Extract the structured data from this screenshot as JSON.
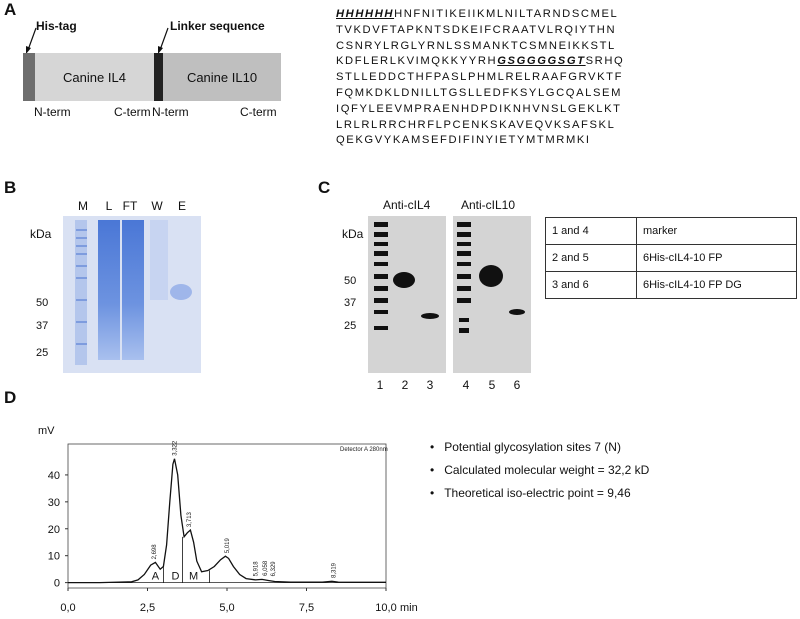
{
  "panels": {
    "a": "A",
    "b": "B",
    "c": "C",
    "d": "D"
  },
  "panelA": {
    "his_tag": "His-tag",
    "linker": "Linker sequence",
    "il4": "Canine IL4",
    "il10": "Canine IL10",
    "nterm": "N-term",
    "cterm": "C-term",
    "colors": {
      "his": "#6e6e6e",
      "il4": "#d6d6d6",
      "linker": "#222222",
      "il10": "#bfbfbf"
    }
  },
  "sequence": [
    {
      "parts": [
        {
          "t": "HHHHHH",
          "style": "tag"
        },
        {
          "t": "HNFNITIKEIIKMLNILTARNDSCMEL"
        }
      ]
    },
    {
      "parts": [
        {
          "t": "TVKDVFTAPKNTSDKEIFCRAATVLRQIYTHN"
        }
      ]
    },
    {
      "parts": [
        {
          "t": "CSNRYLRGLYRNLSSMANKTCSMNEIKKSTL"
        }
      ]
    },
    {
      "parts": [
        {
          "t": "KDFLERLKVIMQKKYYRH"
        },
        {
          "t": "GSGGGGSGT",
          "style": "tag"
        },
        {
          "t": "SRHQ"
        }
      ]
    },
    {
      "parts": [
        {
          "t": "STLLEDDCTHFPASLPHMLRELRAAFGRVKTF"
        }
      ]
    },
    {
      "parts": [
        {
          "t": "FQMKDKLDNILLTGSLLEDFKSYLGCQALSEM"
        }
      ]
    },
    {
      "parts": [
        {
          "t": "IQFYLEEVMPRAENHDPDIKNHVNSLGEKLKT"
        }
      ]
    },
    {
      "parts": [
        {
          "t": "LRLRLRRCHRFLPCENKSKAVEQVKSAFSKL"
        }
      ]
    },
    {
      "parts": [
        {
          "t": "QEKGVYKAMSEFDIFINYIETYMTMRMKI"
        }
      ]
    }
  ],
  "panelB": {
    "lanes": [
      "M",
      "L",
      "FT",
      "W",
      "E"
    ],
    "kda": "kDa",
    "markers": [
      "50",
      "37",
      "25"
    ]
  },
  "panelC": {
    "anti1": "Anti-cIL4",
    "anti2": "Anti-cIL10",
    "kda": "kDa",
    "markers": [
      "50",
      "37",
      "25"
    ],
    "lanes": [
      "1",
      "2",
      "3",
      "4",
      "5",
      "6"
    ],
    "legend": [
      {
        "lanes": "1 and 4",
        "desc": "marker"
      },
      {
        "lanes": "2 and 5",
        "desc": "6His-cIL4-10  FP"
      },
      {
        "lanes": "3 and 6",
        "desc": "6His-cIL4-10  FP DG"
      }
    ]
  },
  "panelD": {
    "bullets": [
      "Potential glycosylation sites 7 (N)",
      "Calculated molecular weight = 32,2 kD",
      "Theoretical iso-electric point = 9,46"
    ]
  },
  "chart_data": {
    "type": "line",
    "title": "",
    "xlabel": "min",
    "ylabel": "mV",
    "xlim": [
      0,
      10
    ],
    "ylim": [
      -2,
      50
    ],
    "xticks": [
      "0,0",
      "2,5",
      "5,0",
      "7,5",
      "10,0"
    ],
    "xtick_values": [
      0,
      2.5,
      5,
      7.5,
      10
    ],
    "yticks": [
      "0",
      "10",
      "20",
      "30",
      "40"
    ],
    "ytick_values": [
      0,
      10,
      20,
      30,
      40
    ],
    "detector": "Detector A 280nm",
    "series": [
      {
        "x": [
          0,
          1,
          2,
          2.2,
          2.4,
          2.6,
          2.75,
          2.9,
          3.0,
          3.1,
          3.2,
          3.3,
          3.35,
          3.45,
          3.55,
          3.65,
          3.75,
          3.85,
          3.95,
          4.05,
          4.2,
          4.4,
          4.6,
          4.8,
          4.95,
          5.05,
          5.2,
          5.4,
          5.6,
          5.9,
          6.1,
          6.3,
          6.5,
          7,
          8,
          8.3,
          8.5,
          9,
          10
        ],
        "y": [
          0,
          0,
          0.3,
          1,
          3,
          6.5,
          7.5,
          5,
          6,
          14,
          30,
          44,
          46,
          40,
          25,
          17,
          18.5,
          19.5,
          15,
          8,
          4,
          4.5,
          6,
          8.5,
          9.8,
          9,
          6,
          3,
          1.5,
          1,
          1.2,
          0.8,
          0.4,
          0.2,
          0.2,
          0.5,
          0.2,
          0.1,
          0.1
        ]
      }
    ],
    "peak_labels": [
      {
        "label": "2,698",
        "x": 2.7,
        "y": 7.5
      },
      {
        "label": "3,322",
        "x": 3.35,
        "y": 46
      },
      {
        "label": "3,713",
        "x": 3.8,
        "y": 19.5
      },
      {
        "label": "5,019",
        "x": 5.0,
        "y": 9.8
      },
      {
        "label": "5,918",
        "x": 5.9,
        "y": 1.2
      },
      {
        "label": "6,058",
        "x": 6.2,
        "y": 1.4
      },
      {
        "label": "6,329",
        "x": 6.45,
        "y": 1.2
      },
      {
        "label": "8,319",
        "x": 8.35,
        "y": 0.6
      }
    ],
    "region_labels": [
      {
        "label": "A",
        "x": 2.75
      },
      {
        "label": "D",
        "x": 3.38
      },
      {
        "label": "M",
        "x": 3.95
      }
    ],
    "dividers": [
      3.0,
      3.6,
      4.45
    ]
  }
}
